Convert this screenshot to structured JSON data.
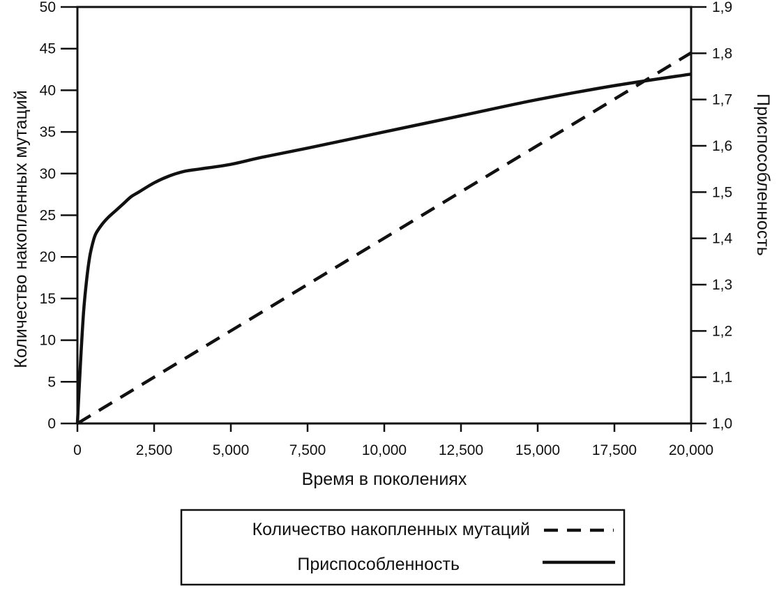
{
  "chart_data": {
    "type": "line",
    "xlabel": "Время в поколениях",
    "ylabel_left": "Количество накопленных мутаций",
    "ylabel_right": "Приспособленность",
    "xlim": [
      0,
      20000
    ],
    "ylim_left": [
      0,
      50
    ],
    "ylim_right": [
      1.0,
      1.9
    ],
    "x_ticks": [
      0,
      2500,
      5000,
      7500,
      10000,
      12500,
      15000,
      17500,
      20000
    ],
    "x_tick_labels": [
      "0",
      "2,500",
      "5,000",
      "7,500",
      "10,000",
      "12,500",
      "15,000",
      "17,500",
      "20,000"
    ],
    "y_left_ticks": [
      0,
      5,
      10,
      15,
      20,
      25,
      30,
      35,
      40,
      45,
      50
    ],
    "y_left_tick_labels": [
      "0",
      "5",
      "10",
      "15",
      "20",
      "25",
      "30",
      "35",
      "40",
      "45",
      "50"
    ],
    "y_right_ticks": [
      1.0,
      1.1,
      1.2,
      1.3,
      1.4,
      1.5,
      1.6,
      1.7,
      1.8,
      1.9
    ],
    "y_right_tick_labels": [
      "1,0",
      "1,1",
      "1,2",
      "1,3",
      "1,4",
      "1,5",
      "1,6",
      "1,7",
      "1,8",
      "1,9"
    ],
    "grid": false,
    "legend_position": "bottom-center",
    "series": [
      {
        "name": "Количество накопленных мутаций",
        "axis": "left",
        "style": "dashed",
        "x": [
          0,
          20000
        ],
        "y": [
          0,
          44.5
        ]
      },
      {
        "name": "Приспособленность",
        "axis": "right",
        "style": "solid",
        "x": [
          0,
          100,
          200,
          300,
          400,
          500,
          600,
          800,
          1000,
          1250,
          1500,
          1750,
          2000,
          2500,
          3000,
          3500,
          4000,
          5000,
          6000,
          7500,
          10000,
          12500,
          15000,
          17500,
          20000
        ],
        "y": [
          1.0,
          1.13,
          1.24,
          1.31,
          1.36,
          1.39,
          1.41,
          1.43,
          1.445,
          1.46,
          1.475,
          1.49,
          1.5,
          1.52,
          1.535,
          1.545,
          1.55,
          1.56,
          1.575,
          1.595,
          1.63,
          1.665,
          1.7,
          1.73,
          1.755
        ]
      }
    ]
  }
}
